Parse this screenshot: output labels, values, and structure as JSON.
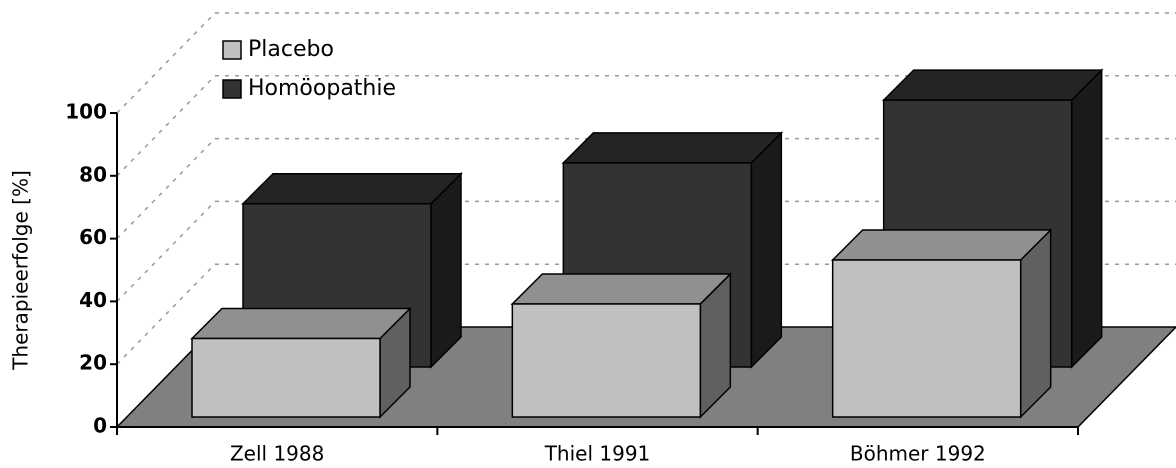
{
  "chart_data": {
    "type": "bar3d",
    "categories": [
      "Zell 1988",
      "Thiel 1991",
      "Böhmer 1992"
    ],
    "series": [
      {
        "name": "Placebo",
        "color": "#c0c0c0",
        "values": [
          25,
          36,
          50
        ]
      },
      {
        "name": "Homöopathie",
        "color": "#333333",
        "values": [
          52,
          65,
          85
        ]
      }
    ],
    "y_label": "Therapieerfolge [%]",
    "ylim": [
      0,
      100
    ],
    "yticks": [
      0,
      20,
      40,
      60,
      80,
      100
    ],
    "grid": true,
    "legend": "top-left"
  }
}
